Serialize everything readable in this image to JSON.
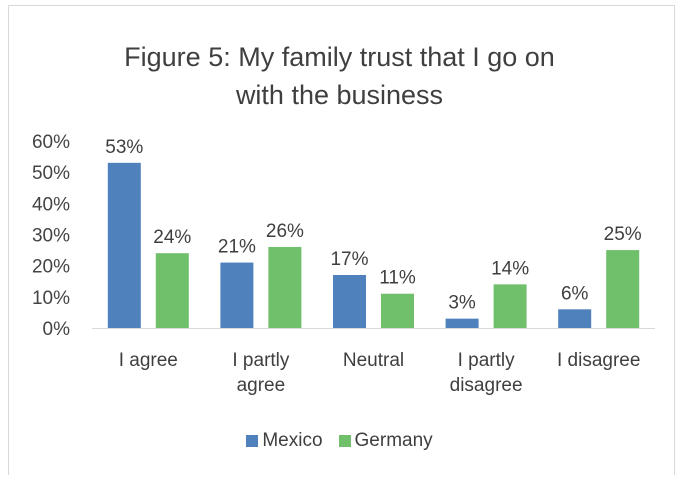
{
  "chart_data": {
    "type": "bar",
    "title": "Figure 5: My family trust that I go on with the business",
    "title_lines": [
      "Figure 5: My family trust that I go on",
      "with the business"
    ],
    "categories": [
      [
        "I agree"
      ],
      [
        "I partly",
        "agree"
      ],
      [
        "Neutral"
      ],
      [
        "I partly",
        "disagree"
      ],
      [
        "I disagree"
      ]
    ],
    "series": [
      {
        "name": "Mexico",
        "color": "#4f81bd",
        "values": [
          53,
          21,
          17,
          3,
          6
        ],
        "labels": [
          "53%",
          "21%",
          "17%",
          "3%",
          "6%"
        ]
      },
      {
        "name": "Germany",
        "color": "#70bf6a",
        "values": [
          24,
          26,
          11,
          14,
          25
        ],
        "labels": [
          "24%",
          "26%",
          "11%",
          "14%",
          "25%"
        ]
      }
    ],
    "ylim": [
      0,
      60
    ],
    "yticks": [
      "0%",
      "10%",
      "20%",
      "30%",
      "40%",
      "50%",
      "60%"
    ],
    "grid": false,
    "legend": "bottom"
  }
}
